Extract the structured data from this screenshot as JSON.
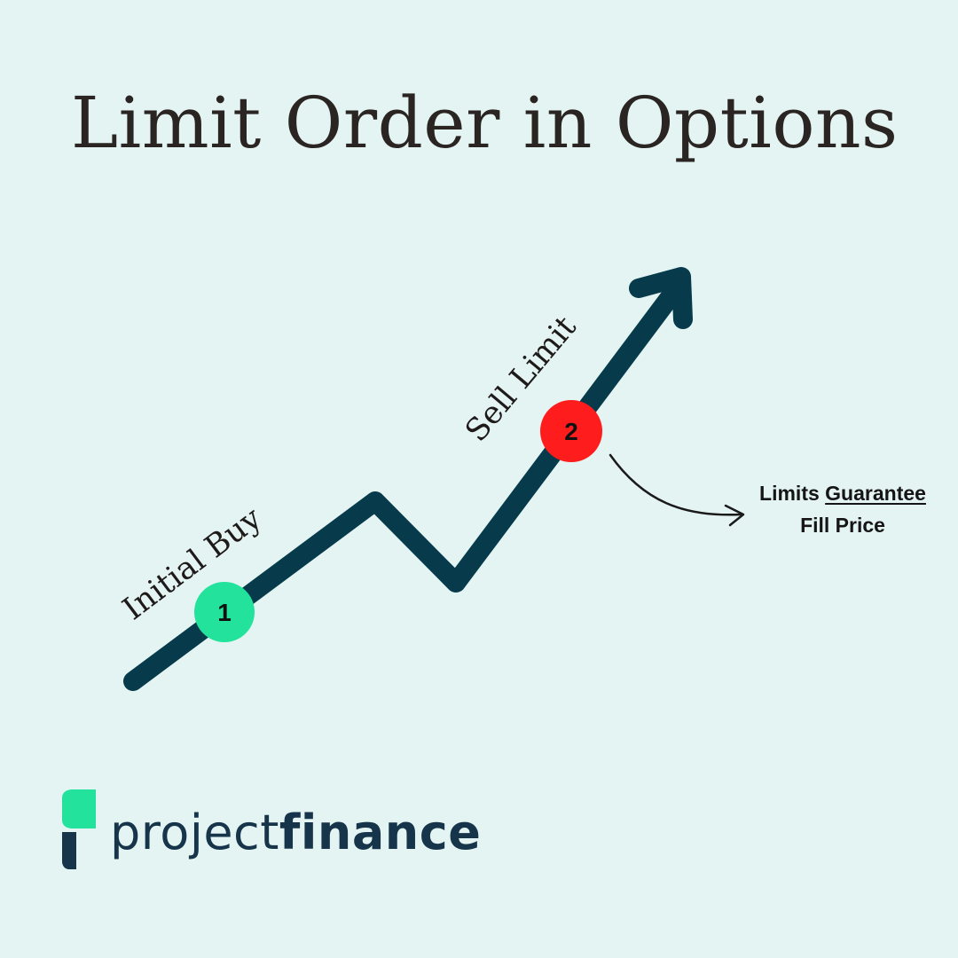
{
  "title": "Limit Order in Options",
  "steps": [
    {
      "number": "1",
      "label": "Initial Buy",
      "color": "#22e29c"
    },
    {
      "number": "2",
      "label": "Sell Limit",
      "color": "#fe1c1c"
    }
  ],
  "callout": {
    "line1_prefix": "Limits ",
    "line1_emphasis": "Guarantee",
    "line2": "Fill Price"
  },
  "logo": {
    "name_regular": "project",
    "name_bold": "finance"
  },
  "colors": {
    "background": "#e4f4f2",
    "line": "#073b4c",
    "logo_green": "#22e29c",
    "logo_navy": "#16344a"
  }
}
